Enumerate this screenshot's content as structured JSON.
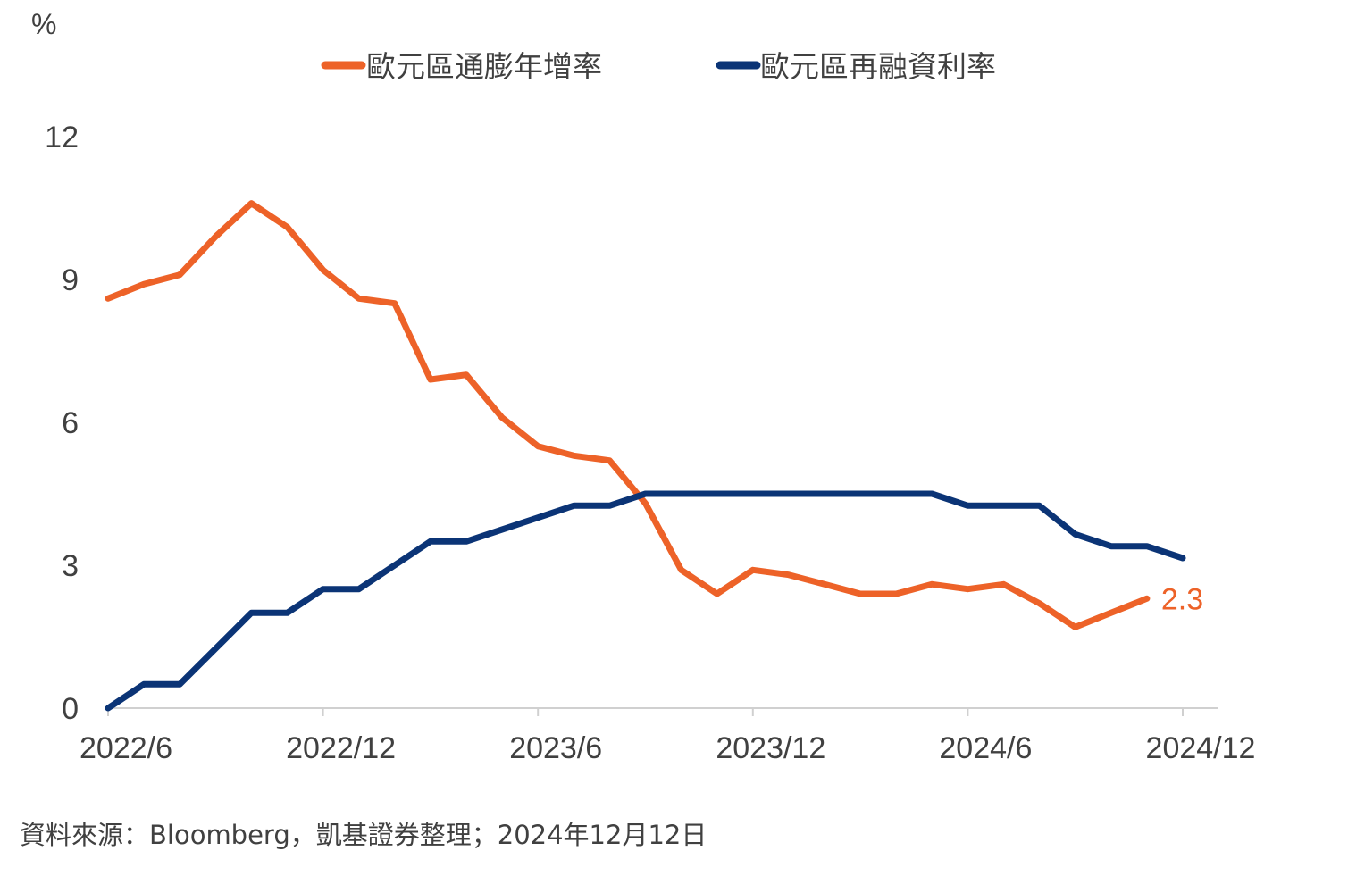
{
  "chart_data": {
    "type": "line",
    "title": "",
    "ylabel": "%",
    "xlabel": "",
    "ylim": [
      0,
      12
    ],
    "yticks": [
      0,
      3,
      6,
      9,
      12
    ],
    "x_start": "2022/6",
    "x_end": "2024/11",
    "x_tick_labels": [
      "2022/6",
      "2022/12",
      "2023/6",
      "2023/12",
      "2024/6",
      "2024/12"
    ],
    "grid": false,
    "legend": "top",
    "series": [
      {
        "name": "歐元區通膨年增率",
        "color": "#ED6228",
        "x_first": "2022/6",
        "values": [
          8.6,
          8.9,
          9.1,
          9.9,
          10.6,
          10.1,
          9.2,
          8.6,
          8.5,
          6.9,
          7.0,
          6.1,
          5.5,
          5.3,
          5.2,
          4.3,
          2.9,
          2.4,
          2.9,
          2.8,
          2.6,
          2.4,
          2.4,
          2.6,
          2.5,
          2.6,
          2.2,
          1.7,
          2.0,
          2.3
        ],
        "end_label": "2.3"
      },
      {
        "name": "歐元區再融資利率",
        "color": "#0B3476",
        "x_first": "2022/6",
        "values": [
          0.0,
          0.5,
          0.5,
          1.25,
          2.0,
          2.0,
          2.5,
          2.5,
          3.0,
          3.5,
          3.5,
          3.75,
          4.0,
          4.25,
          4.25,
          4.5,
          4.5,
          4.5,
          4.5,
          4.5,
          4.5,
          4.5,
          4.5,
          4.5,
          4.25,
          4.25,
          4.25,
          3.65,
          3.4,
          3.4,
          3.15
        ]
      }
    ]
  },
  "source_note": "資料來源：Bloomberg，凱基證券整理；2024年12月12日"
}
